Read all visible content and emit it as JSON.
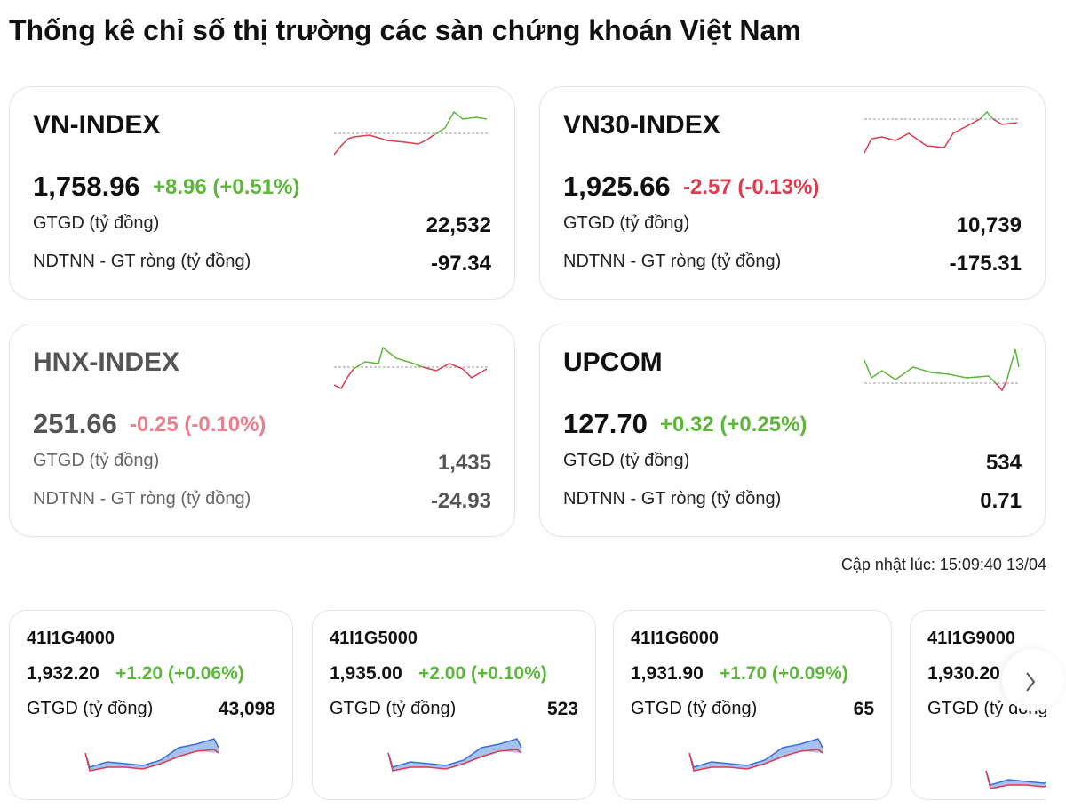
{
  "header": {
    "title": "Thống kê chỉ số thị trường các sàn chứng khoán Việt Nam"
  },
  "cards": [
    {
      "name": "VN-INDEX",
      "value": "1,758.96",
      "change": "+8.96 (+0.51%)",
      "change_color": "#5cb83a",
      "gtgd_label": "GTGD (tỷ đồng)",
      "gtgd": "22,532",
      "ndtnn_label": "NDTNN - GT ròng (tỷ đồng)",
      "ndtnn": "-97.34"
    },
    {
      "name": "VN30-INDEX",
      "value": "1,925.66",
      "change": "-2.57 (-0.13%)",
      "change_color": "#e03a4e",
      "gtgd_label": "GTGD (tỷ đồng)",
      "gtgd": "10,739",
      "ndtnn_label": "NDTNN - GT ròng (tỷ đồng)",
      "ndtnn": "-175.31"
    },
    {
      "name": "HNX-INDEX",
      "value": "251.66",
      "change": "-0.25 (-0.10%)",
      "change_color": "#ef7d8c",
      "gtgd_label": "GTGD (tỷ đồng)",
      "gtgd": "1,435",
      "ndtnn_label": "NDTNN - GT ròng (tỷ đồng)",
      "ndtnn": "-24.93"
    },
    {
      "name": "UPCOM",
      "value": "127.70",
      "change": "+0.32 (+0.25%)",
      "change_color": "#5cb83a",
      "gtgd_label": "GTGD (tỷ đồng)",
      "gtgd": "534",
      "ndtnn_label": "NDTNN - GT ròng (tỷ đồng)",
      "ndtnn": "0.71"
    }
  ],
  "updated": "Cập nhật lúc: 15:09:40 13/04",
  "futures": [
    {
      "code": "41I1G4000",
      "price": "1,932.20",
      "change": "+1.20 (+0.06%)",
      "gtgd_label": "GTGD (tỷ đồng)",
      "gtgd": "43,098"
    },
    {
      "code": "41I1G5000",
      "price": "1,935.00",
      "change": "+2.00 (+0.10%)",
      "gtgd_label": "GTGD (tỷ đồng)",
      "gtgd": "523"
    },
    {
      "code": "41I1G6000",
      "price": "1,931.90",
      "change": "+1.70 (+0.09%)",
      "gtgd_label": "GTGD (tỷ đồng)",
      "gtgd": "65"
    },
    {
      "code": "41I1G9000",
      "price": "1,930.20",
      "gtgd_label": "GTGD (tỷ đồng)"
    }
  ]
}
